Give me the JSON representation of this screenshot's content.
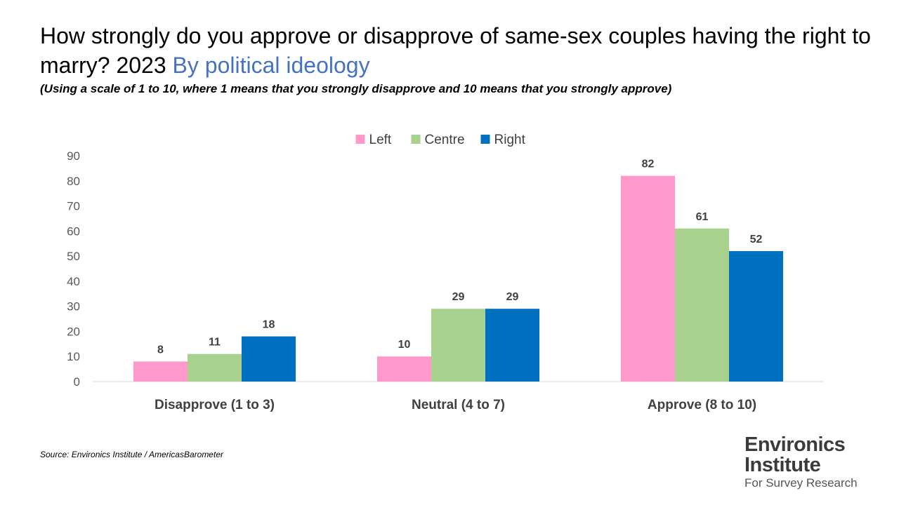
{
  "title": {
    "main": "How strongly do you approve or disapprove of same-sex couples having the right to marry?  2023 ",
    "accent": "By political ideology"
  },
  "subtitle": "(Using a scale of 1 to 10, where 1 means that you strongly disapprove and 10 means that you strongly approve)",
  "source": "Source: Environics Institute / AmericasBarometer",
  "logo": {
    "line1": "Environics",
    "line2": "Institute",
    "line3": "For Survey Research"
  },
  "colors": {
    "accent": "#4472c4",
    "left": "#ff99cc",
    "centre": "#a9d18e",
    "right": "#0070c0"
  },
  "chart_data": {
    "type": "bar",
    "categories": [
      "Disapprove (1 to 3)",
      "Neutral (4 to 7)",
      "Approve (8 to 10)"
    ],
    "series": [
      {
        "name": "Left",
        "values": [
          8,
          10,
          82
        ],
        "color": "#ff99cc"
      },
      {
        "name": "Centre",
        "values": [
          11,
          29,
          61
        ],
        "color": "#a9d18e"
      },
      {
        "name": "Right",
        "values": [
          18,
          29,
          52
        ],
        "color": "#0070c0"
      }
    ],
    "yticks": [
      0,
      10,
      20,
      30,
      40,
      50,
      60,
      70,
      80,
      90
    ],
    "ylim": [
      0,
      90
    ],
    "legend": "top-center",
    "grid": false
  }
}
